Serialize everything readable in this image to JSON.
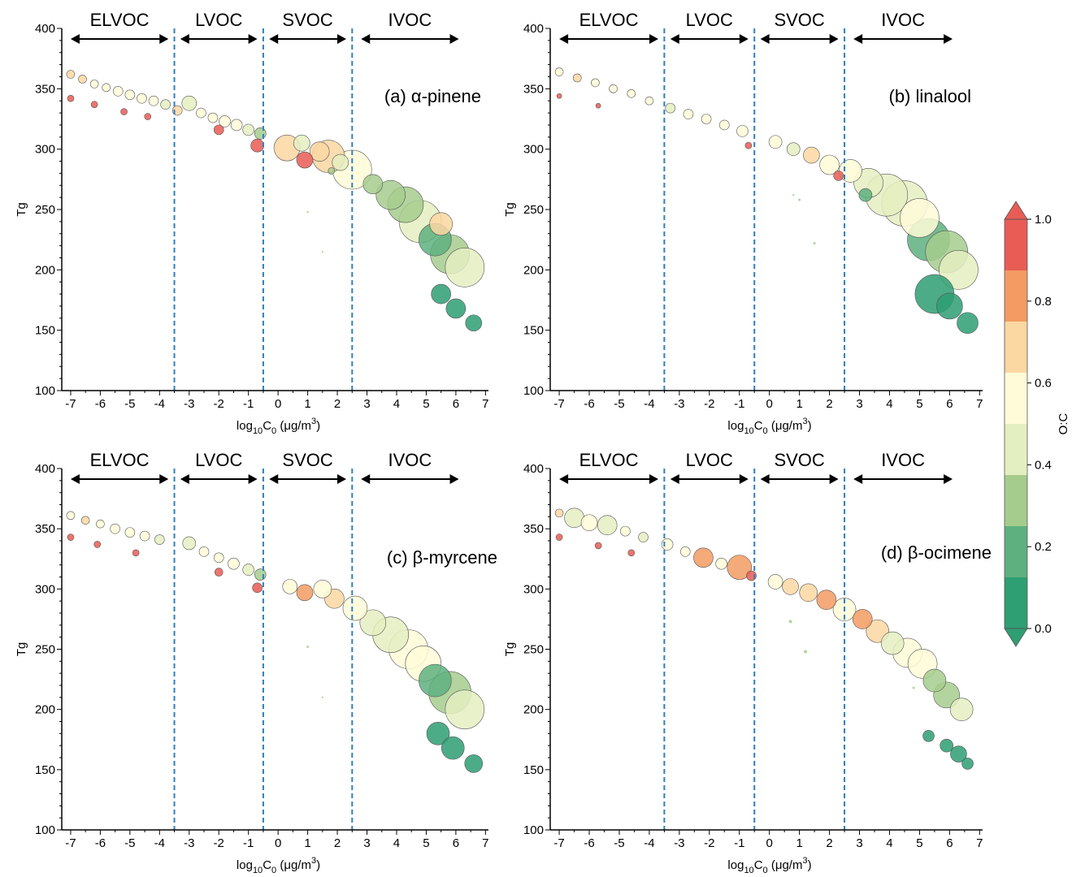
{
  "chart_data": [
    {
      "type": "scatter",
      "panel_label": "(a) α-pinene",
      "xlabel": "log10C0 (μg/m3)",
      "ylabel": "Tg",
      "xlim": [
        -7.3,
        7.1
      ],
      "ylim": [
        100,
        400
      ],
      "x_ticks": [
        -7,
        -6,
        -5,
        -4,
        -3,
        -2,
        -1,
        0,
        1,
        2,
        3,
        4,
        5,
        6,
        7
      ],
      "y_ticks": [
        100,
        150,
        200,
        250,
        300,
        350,
        400
      ],
      "volatility_boundaries": [
        -3.5,
        -0.5,
        2.5
      ],
      "regions": [
        {
          "label": "ELVOC",
          "from": -7.0,
          "to": -3.7
        },
        {
          "label": "LVOC",
          "from": -3.3,
          "to": -0.7
        },
        {
          "label": "SVOC",
          "from": -0.3,
          "to": 2.3
        },
        {
          "label": "IVOC",
          "from": 2.8,
          "to": 6.1
        }
      ],
      "points": [
        {
          "x": -7.0,
          "y": 362,
          "oc": 0.65,
          "s": 5
        },
        {
          "x": -6.6,
          "y": 358,
          "oc": 0.7,
          "s": 5
        },
        {
          "x": -6.2,
          "y": 354,
          "oc": 0.6,
          "s": 5
        },
        {
          "x": -5.8,
          "y": 351,
          "oc": 0.62,
          "s": 5
        },
        {
          "x": -5.4,
          "y": 348,
          "oc": 0.55,
          "s": 6
        },
        {
          "x": -5.0,
          "y": 345,
          "oc": 0.6,
          "s": 6
        },
        {
          "x": -4.6,
          "y": 342,
          "oc": 0.55,
          "s": 6
        },
        {
          "x": -4.2,
          "y": 340,
          "oc": 0.5,
          "s": 6
        },
        {
          "x": -3.8,
          "y": 337,
          "oc": 0.45,
          "s": 6
        },
        {
          "x": -7.0,
          "y": 342,
          "oc": 0.95,
          "s": 4
        },
        {
          "x": -6.2,
          "y": 337,
          "oc": 0.9,
          "s": 4
        },
        {
          "x": -5.2,
          "y": 331,
          "oc": 0.92,
          "s": 4
        },
        {
          "x": -4.4,
          "y": 327,
          "oc": 0.9,
          "s": 4
        },
        {
          "x": -3.0,
          "y": 338,
          "oc": 0.45,
          "s": 9
        },
        {
          "x": -3.4,
          "y": 332,
          "oc": 0.7,
          "s": 6
        },
        {
          "x": -2.6,
          "y": 330,
          "oc": 0.5,
          "s": 6
        },
        {
          "x": -2.2,
          "y": 326,
          "oc": 0.55,
          "s": 6
        },
        {
          "x": -1.8,
          "y": 323,
          "oc": 0.6,
          "s": 7
        },
        {
          "x": -1.4,
          "y": 320,
          "oc": 0.5,
          "s": 7
        },
        {
          "x": -1.0,
          "y": 316,
          "oc": 0.45,
          "s": 7
        },
        {
          "x": -0.6,
          "y": 313,
          "oc": 0.35,
          "s": 7
        },
        {
          "x": -2.0,
          "y": 316,
          "oc": 0.9,
          "s": 6
        },
        {
          "x": -0.7,
          "y": 303,
          "oc": 0.9,
          "s": 8
        },
        {
          "x": 0.3,
          "y": 301,
          "oc": 0.7,
          "s": 16
        },
        {
          "x": 0.8,
          "y": 305,
          "oc": 0.45,
          "s": 10
        },
        {
          "x": 1.4,
          "y": 298,
          "oc": 0.65,
          "s": 12
        },
        {
          "x": 1.7,
          "y": 294,
          "oc": 0.72,
          "s": 20
        },
        {
          "x": 2.1,
          "y": 289,
          "oc": 0.4,
          "s": 10
        },
        {
          "x": 0.9,
          "y": 291,
          "oc": 0.9,
          "s": 10
        },
        {
          "x": 1.8,
          "y": 282,
          "oc": 0.3,
          "s": 4
        },
        {
          "x": 2.5,
          "y": 283,
          "oc": 0.5,
          "s": 24
        },
        {
          "x": 3.2,
          "y": 271,
          "oc": 0.35,
          "s": 12
        },
        {
          "x": 3.8,
          "y": 262,
          "oc": 0.3,
          "s": 18
        },
        {
          "x": 4.3,
          "y": 254,
          "oc": 0.3,
          "s": 22
        },
        {
          "x": 4.8,
          "y": 240,
          "oc": 0.45,
          "s": 26
        },
        {
          "x": 5.3,
          "y": 225,
          "oc": 0.2,
          "s": 20
        },
        {
          "x": 5.8,
          "y": 213,
          "oc": 0.3,
          "s": 24
        },
        {
          "x": 6.3,
          "y": 202,
          "oc": 0.4,
          "s": 24
        },
        {
          "x": 5.5,
          "y": 238,
          "oc": 0.65,
          "s": 14
        },
        {
          "x": 5.5,
          "y": 180,
          "oc": 0.05,
          "s": 12
        },
        {
          "x": 6.0,
          "y": 168,
          "oc": 0.05,
          "s": 12
        },
        {
          "x": 6.6,
          "y": 156,
          "oc": 0.05,
          "s": 10
        },
        {
          "x": 1.0,
          "y": 248,
          "oc": 0.3,
          "s": 1.2
        },
        {
          "x": 1.5,
          "y": 215,
          "oc": 0.3,
          "s": 1.2
        }
      ]
    },
    {
      "type": "scatter",
      "panel_label": "(b) linalool",
      "xlabel": "log10C0 (μg/m3)",
      "ylabel": "Tg",
      "xlim": [
        -7.3,
        7.1
      ],
      "ylim": [
        100,
        400
      ],
      "x_ticks": [
        -7,
        -6,
        -5,
        -4,
        -3,
        -2,
        -1,
        0,
        1,
        2,
        3,
        4,
        5,
        6,
        7
      ],
      "y_ticks": [
        100,
        150,
        200,
        250,
        300,
        350,
        400
      ],
      "volatility_boundaries": [
        -3.5,
        -0.5,
        2.5
      ],
      "regions": [
        {
          "label": "ELVOC",
          "from": -7.0,
          "to": -3.7
        },
        {
          "label": "LVOC",
          "from": -3.3,
          "to": -0.7
        },
        {
          "label": "SVOC",
          "from": -0.3,
          "to": 2.3
        },
        {
          "label": "IVOC",
          "from": 2.8,
          "to": 6.1
        }
      ],
      "points": [
        {
          "x": -7.0,
          "y": 364,
          "oc": 0.6,
          "s": 5
        },
        {
          "x": -6.4,
          "y": 359,
          "oc": 0.65,
          "s": 5
        },
        {
          "x": -5.8,
          "y": 355,
          "oc": 0.6,
          "s": 5
        },
        {
          "x": -5.2,
          "y": 350,
          "oc": 0.55,
          "s": 5
        },
        {
          "x": -4.6,
          "y": 346,
          "oc": 0.5,
          "s": 5
        },
        {
          "x": -4.0,
          "y": 340,
          "oc": 0.5,
          "s": 5
        },
        {
          "x": -7.0,
          "y": 344,
          "oc": 0.95,
          "s": 3
        },
        {
          "x": -5.7,
          "y": 336,
          "oc": 0.9,
          "s": 3
        },
        {
          "x": -3.3,
          "y": 334,
          "oc": 0.45,
          "s": 6
        },
        {
          "x": -2.7,
          "y": 329,
          "oc": 0.5,
          "s": 6
        },
        {
          "x": -2.1,
          "y": 325,
          "oc": 0.55,
          "s": 6
        },
        {
          "x": -1.5,
          "y": 320,
          "oc": 0.5,
          "s": 6
        },
        {
          "x": -0.9,
          "y": 315,
          "oc": 0.5,
          "s": 7
        },
        {
          "x": -0.7,
          "y": 303,
          "oc": 0.95,
          "s": 4
        },
        {
          "x": 0.2,
          "y": 306,
          "oc": 0.6,
          "s": 8
        },
        {
          "x": 0.8,
          "y": 300,
          "oc": 0.45,
          "s": 8
        },
        {
          "x": 1.4,
          "y": 295,
          "oc": 0.7,
          "s": 10
        },
        {
          "x": 2.0,
          "y": 287,
          "oc": 0.55,
          "s": 12
        },
        {
          "x": 2.3,
          "y": 278,
          "oc": 0.9,
          "s": 6
        },
        {
          "x": 2.7,
          "y": 282,
          "oc": 0.5,
          "s": 14
        },
        {
          "x": 3.3,
          "y": 272,
          "oc": 0.45,
          "s": 18
        },
        {
          "x": 3.9,
          "y": 262,
          "oc": 0.4,
          "s": 26
        },
        {
          "x": 4.5,
          "y": 255,
          "oc": 0.45,
          "s": 28
        },
        {
          "x": 5.0,
          "y": 243,
          "oc": 0.5,
          "s": 24
        },
        {
          "x": 5.3,
          "y": 225,
          "oc": 0.2,
          "s": 26
        },
        {
          "x": 5.9,
          "y": 215,
          "oc": 0.3,
          "s": 26
        },
        {
          "x": 6.3,
          "y": 200,
          "oc": 0.4,
          "s": 24
        },
        {
          "x": 3.2,
          "y": 262,
          "oc": 0.2,
          "s": 8
        },
        {
          "x": 5.5,
          "y": 180,
          "oc": 0.05,
          "s": 24
        },
        {
          "x": 6.0,
          "y": 170,
          "oc": 0.05,
          "s": 16
        },
        {
          "x": 6.6,
          "y": 156,
          "oc": 0.1,
          "s": 13
        },
        {
          "x": 1.0,
          "y": 258,
          "oc": 0.3,
          "s": 1.5
        },
        {
          "x": 1.5,
          "y": 222,
          "oc": 0.3,
          "s": 1.5
        },
        {
          "x": 0.8,
          "y": 262,
          "oc": 0.3,
          "s": 1.2
        }
      ]
    },
    {
      "type": "scatter",
      "panel_label": "(c) β-myrcene",
      "xlabel": "log10C0 (μg/m3)",
      "ylabel": "Tg",
      "xlim": [
        -7.3,
        7.1
      ],
      "ylim": [
        100,
        400
      ],
      "x_ticks": [
        -7,
        -6,
        -5,
        -4,
        -3,
        -2,
        -1,
        0,
        1,
        2,
        3,
        4,
        5,
        6,
        7
      ],
      "y_ticks": [
        100,
        150,
        200,
        250,
        300,
        350,
        400
      ],
      "volatility_boundaries": [
        -3.5,
        -0.5,
        2.5
      ],
      "regions": [
        {
          "label": "ELVOC",
          "from": -7.0,
          "to": -3.7
        },
        {
          "label": "LVOC",
          "from": -3.3,
          "to": -0.7
        },
        {
          "label": "SVOC",
          "from": -0.3,
          "to": 2.3
        },
        {
          "label": "IVOC",
          "from": 2.8,
          "to": 6.1
        }
      ],
      "points": [
        {
          "x": -7.0,
          "y": 361,
          "oc": 0.6,
          "s": 5
        },
        {
          "x": -6.5,
          "y": 357,
          "oc": 0.65,
          "s": 5
        },
        {
          "x": -6.0,
          "y": 354,
          "oc": 0.6,
          "s": 5
        },
        {
          "x": -5.5,
          "y": 350,
          "oc": 0.55,
          "s": 6
        },
        {
          "x": -5.0,
          "y": 347,
          "oc": 0.5,
          "s": 6
        },
        {
          "x": -4.5,
          "y": 344,
          "oc": 0.5,
          "s": 6
        },
        {
          "x": -4.0,
          "y": 341,
          "oc": 0.45,
          "s": 6
        },
        {
          "x": -7.0,
          "y": 343,
          "oc": 0.95,
          "s": 4
        },
        {
          "x": -6.1,
          "y": 337,
          "oc": 0.9,
          "s": 4
        },
        {
          "x": -4.8,
          "y": 330,
          "oc": 0.9,
          "s": 4
        },
        {
          "x": -3.0,
          "y": 338,
          "oc": 0.45,
          "s": 8
        },
        {
          "x": -2.5,
          "y": 331,
          "oc": 0.5,
          "s": 6
        },
        {
          "x": -2.0,
          "y": 326,
          "oc": 0.55,
          "s": 6
        },
        {
          "x": -1.5,
          "y": 321,
          "oc": 0.55,
          "s": 7
        },
        {
          "x": -1.0,
          "y": 316,
          "oc": 0.45,
          "s": 7
        },
        {
          "x": -0.6,
          "y": 312,
          "oc": 0.3,
          "s": 7
        },
        {
          "x": -2.0,
          "y": 314,
          "oc": 0.9,
          "s": 5
        },
        {
          "x": -0.7,
          "y": 301,
          "oc": 0.9,
          "s": 6
        },
        {
          "x": 0.4,
          "y": 302,
          "oc": 0.6,
          "s": 9
        },
        {
          "x": 0.9,
          "y": 297,
          "oc": 0.85,
          "s": 10
        },
        {
          "x": 1.5,
          "y": 300,
          "oc": 0.6,
          "s": 11
        },
        {
          "x": 1.9,
          "y": 292,
          "oc": 0.7,
          "s": 12
        },
        {
          "x": 2.6,
          "y": 284,
          "oc": 0.5,
          "s": 15
        },
        {
          "x": 3.2,
          "y": 272,
          "oc": 0.45,
          "s": 16
        },
        {
          "x": 3.8,
          "y": 262,
          "oc": 0.45,
          "s": 22
        },
        {
          "x": 4.4,
          "y": 250,
          "oc": 0.5,
          "s": 24
        },
        {
          "x": 4.9,
          "y": 238,
          "oc": 0.55,
          "s": 22
        },
        {
          "x": 5.3,
          "y": 224,
          "oc": 0.2,
          "s": 20
        },
        {
          "x": 5.8,
          "y": 214,
          "oc": 0.3,
          "s": 26
        },
        {
          "x": 6.3,
          "y": 200,
          "oc": 0.4,
          "s": 24
        },
        {
          "x": 5.4,
          "y": 180,
          "oc": 0.05,
          "s": 14
        },
        {
          "x": 5.9,
          "y": 168,
          "oc": 0.05,
          "s": 14
        },
        {
          "x": 6.6,
          "y": 155,
          "oc": 0.05,
          "s": 11
        },
        {
          "x": 1.0,
          "y": 252,
          "oc": 0.3,
          "s": 1.5
        },
        {
          "x": 1.5,
          "y": 210,
          "oc": 0.3,
          "s": 1.2
        }
      ]
    },
    {
      "type": "scatter",
      "panel_label": "(d) β-ocimene",
      "xlabel": "log10C0 (μg/m3)",
      "ylabel": "Tg",
      "xlim": [
        -7.3,
        7.1
      ],
      "ylim": [
        100,
        400
      ],
      "x_ticks": [
        -7,
        -6,
        -5,
        -4,
        -3,
        -2,
        -1,
        0,
        1,
        2,
        3,
        4,
        5,
        6,
        7
      ],
      "y_ticks": [
        100,
        150,
        200,
        250,
        300,
        350,
        400
      ],
      "volatility_boundaries": [
        -3.5,
        -0.5,
        2.5
      ],
      "regions": [
        {
          "label": "ELVOC",
          "from": -7.0,
          "to": -3.7
        },
        {
          "label": "LVOC",
          "from": -3.3,
          "to": -0.7
        },
        {
          "label": "SVOC",
          "from": -0.3,
          "to": 2.3
        },
        {
          "label": "IVOC",
          "from": 2.8,
          "to": 6.1
        }
      ],
      "points": [
        {
          "x": -7.0,
          "y": 363,
          "oc": 0.65,
          "s": 5
        },
        {
          "x": -6.5,
          "y": 359,
          "oc": 0.45,
          "s": 12
        },
        {
          "x": -6.0,
          "y": 355,
          "oc": 0.5,
          "s": 10
        },
        {
          "x": -5.4,
          "y": 353,
          "oc": 0.45,
          "s": 12
        },
        {
          "x": -4.8,
          "y": 348,
          "oc": 0.5,
          "s": 6
        },
        {
          "x": -4.2,
          "y": 343,
          "oc": 0.45,
          "s": 6
        },
        {
          "x": -7.0,
          "y": 343,
          "oc": 0.95,
          "s": 4
        },
        {
          "x": -5.7,
          "y": 336,
          "oc": 0.9,
          "s": 4
        },
        {
          "x": -4.6,
          "y": 330,
          "oc": 0.92,
          "s": 4
        },
        {
          "x": -3.4,
          "y": 337,
          "oc": 0.55,
          "s": 7
        },
        {
          "x": -2.8,
          "y": 331,
          "oc": 0.6,
          "s": 6
        },
        {
          "x": -2.2,
          "y": 326,
          "oc": 0.75,
          "s": 12
        },
        {
          "x": -1.6,
          "y": 321,
          "oc": 0.5,
          "s": 7
        },
        {
          "x": -1.0,
          "y": 318,
          "oc": 0.8,
          "s": 15
        },
        {
          "x": -0.6,
          "y": 311,
          "oc": 0.95,
          "s": 6
        },
        {
          "x": 0.2,
          "y": 306,
          "oc": 0.6,
          "s": 9
        },
        {
          "x": 0.7,
          "y": 302,
          "oc": 0.65,
          "s": 10
        },
        {
          "x": 1.3,
          "y": 297,
          "oc": 0.7,
          "s": 11
        },
        {
          "x": 1.9,
          "y": 291,
          "oc": 0.75,
          "s": 12
        },
        {
          "x": 2.5,
          "y": 283,
          "oc": 0.5,
          "s": 14
        },
        {
          "x": 3.1,
          "y": 275,
          "oc": 0.8,
          "s": 12
        },
        {
          "x": 3.6,
          "y": 265,
          "oc": 0.7,
          "s": 14
        },
        {
          "x": 4.1,
          "y": 255,
          "oc": 0.4,
          "s": 14
        },
        {
          "x": 4.6,
          "y": 247,
          "oc": 0.5,
          "s": 18
        },
        {
          "x": 5.1,
          "y": 238,
          "oc": 0.55,
          "s": 18
        },
        {
          "x": 5.5,
          "y": 224,
          "oc": 0.3,
          "s": 14
        },
        {
          "x": 5.9,
          "y": 212,
          "oc": 0.3,
          "s": 16
        },
        {
          "x": 6.4,
          "y": 200,
          "oc": 0.45,
          "s": 14
        },
        {
          "x": 5.3,
          "y": 178,
          "oc": 0.05,
          "s": 7
        },
        {
          "x": 5.9,
          "y": 170,
          "oc": 0.05,
          "s": 8
        },
        {
          "x": 6.3,
          "y": 163,
          "oc": 0.05,
          "s": 10
        },
        {
          "x": 6.6,
          "y": 155,
          "oc": 0.1,
          "s": 7
        },
        {
          "x": 1.2,
          "y": 248,
          "oc": 0.3,
          "s": 2
        },
        {
          "x": 0.7,
          "y": 273,
          "oc": 0.3,
          "s": 2
        },
        {
          "x": 4.8,
          "y": 218,
          "oc": 0.3,
          "s": 1.5
        }
      ]
    }
  ],
  "colorbar": {
    "label": "O:C",
    "ticks": [
      "0.0",
      "0.2",
      "0.4",
      "0.6",
      "0.8",
      "1.0"
    ],
    "bands": [
      "#2e9e73",
      "#5eb07f",
      "#a6cc8d",
      "#e4efc1",
      "#fffbd8",
      "#fbd7a2",
      "#f39b62",
      "#e95c55"
    ],
    "over_color": "#e95c55",
    "under_color": "#2e9e73"
  }
}
